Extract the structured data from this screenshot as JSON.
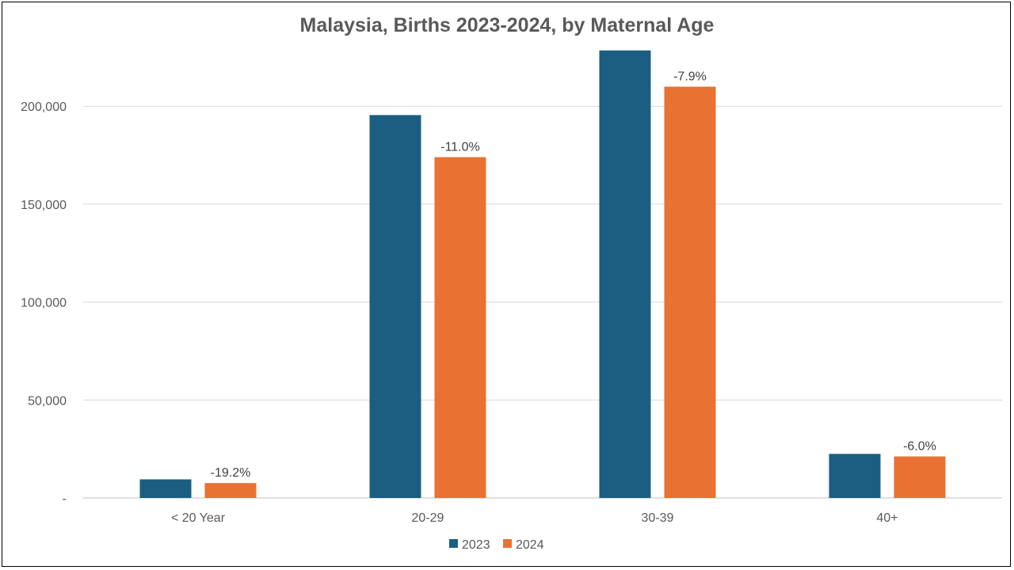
{
  "chart_data": {
    "type": "bar",
    "title": "Malaysia, Births 2023-2024, by Maternal Age",
    "xlabel": "",
    "ylabel": "",
    "categories": [
      "< 20 Year",
      "20-29",
      "30-39",
      "40+"
    ],
    "series": [
      {
        "name": "2023",
        "color": "#1b5e82",
        "values": [
          9500,
          195500,
          228500,
          22500
        ]
      },
      {
        "name": "2024",
        "color": "#e97132",
        "values": [
          7600,
          174000,
          210000,
          21200
        ]
      }
    ],
    "data_labels": [
      "-19.2%",
      "-11.0%",
      "-7.9%",
      "-6.0%"
    ],
    "ylim": [
      0,
      230000
    ],
    "yticks": [
      0,
      50000,
      100000,
      150000,
      200000
    ],
    "ytick_labels": [
      "-",
      "50,000",
      "100,000",
      "150,000",
      "200,000"
    ],
    "grid": true,
    "legend_position": "bottom"
  }
}
